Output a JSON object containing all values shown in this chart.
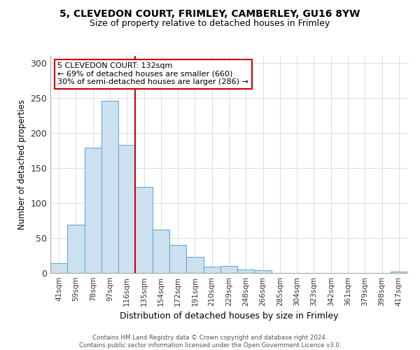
{
  "title1": "5, CLEVEDON COURT, FRIMLEY, CAMBERLEY, GU16 8YW",
  "title2": "Size of property relative to detached houses in Frimley",
  "xlabel": "Distribution of detached houses by size in Frimley",
  "ylabel": "Number of detached properties",
  "bar_labels": [
    "41sqm",
    "59sqm",
    "78sqm",
    "97sqm",
    "116sqm",
    "135sqm",
    "154sqm",
    "172sqm",
    "191sqm",
    "210sqm",
    "229sqm",
    "248sqm",
    "266sqm",
    "285sqm",
    "304sqm",
    "323sqm",
    "342sqm",
    "361sqm",
    "379sqm",
    "398sqm",
    "417sqm"
  ],
  "bar_values": [
    14,
    69,
    179,
    246,
    183,
    123,
    62,
    40,
    23,
    9,
    10,
    5,
    4,
    0,
    0,
    0,
    0,
    0,
    0,
    0,
    2
  ],
  "bar_color": "#cce0f0",
  "bar_edge_color": "#6aaad4",
  "vline_color": "#cc0000",
  "annotation_title": "5 CLEVEDON COURT: 132sqm",
  "annotation_line1": "← 69% of detached houses are smaller (660)",
  "annotation_line2": "30% of semi-detached houses are larger (286) →",
  "annotation_box_edge": "#cc0000",
  "ylim": [
    0,
    310
  ],
  "yticks": [
    0,
    50,
    100,
    150,
    200,
    250,
    300
  ],
  "footnote1": "Contains HM Land Registry data © Crown copyright and database right 2024.",
  "footnote2": "Contains public sector information licensed under the Open Government Licence v3.0."
}
